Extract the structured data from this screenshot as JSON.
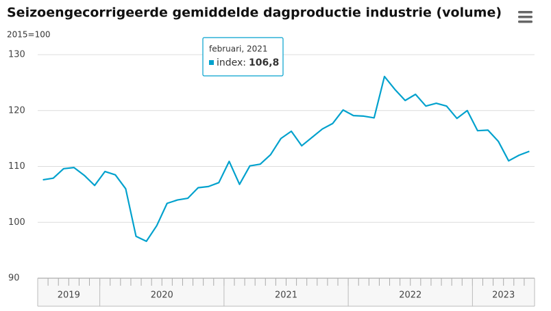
{
  "chart_data": {
    "type": "line",
    "title": "Seizoengecorrigeerde gemiddelde dagproductie industrie (volume)",
    "subtitle": "2015=100",
    "categories": [
      null,
      null,
      null,
      null,
      null,
      null,
      null,
      null,
      null,
      null,
      null,
      null,
      null,
      null,
      null,
      null,
      null,
      null,
      null,
      null,
      null,
      null,
      null,
      null,
      null,
      null,
      null,
      null,
      null,
      null,
      null,
      null,
      null,
      null,
      null,
      null,
      null,
      null,
      null,
      null,
      null,
      null,
      null,
      null,
      null,
      null,
      null,
      null
    ],
    "year_labels": [
      "2019",
      "2020",
      "2021",
      "2022",
      "2023"
    ],
    "year_spans": [
      6,
      12,
      12,
      12,
      6
    ],
    "series": [
      {
        "name": "index",
        "color": "#00a1cd",
        "values": [
          107.6,
          107.9,
          109.6,
          109.8,
          108.4,
          106.6,
          109.1,
          108.5,
          106,
          97.5,
          96.6,
          99.4,
          103.4,
          104,
          104.3,
          106.2,
          106.4,
          107.1,
          110.9,
          106.8,
          110.1,
          110.4,
          112.1,
          115,
          116.3,
          113.7,
          115.2,
          116.7,
          117.7,
          120.1,
          119.1,
          119,
          118.7,
          126.1,
          123.8,
          121.8,
          122.9,
          120.8,
          121.3,
          120.8,
          118.6,
          120,
          116.4,
          116.5,
          114.5,
          111,
          112,
          112.7
        ]
      }
    ],
    "ylim": [
      90,
      130
    ],
    "yticks": [
      90,
      100,
      110,
      120,
      130
    ],
    "grid": true,
    "tooltip": {
      "title": "februari, 2021",
      "label": "index:",
      "value_label": "106,8"
    }
  }
}
